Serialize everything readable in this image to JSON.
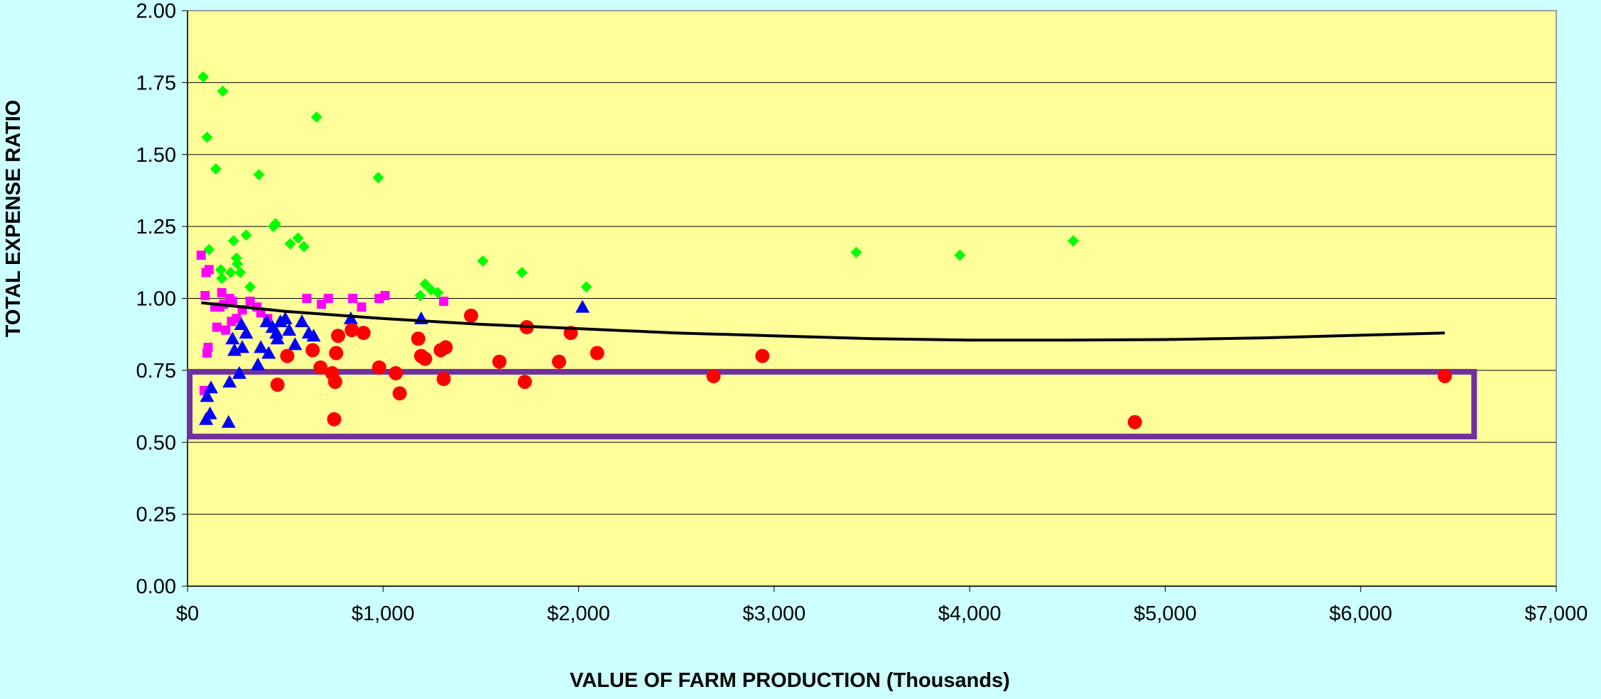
{
  "chart_data": {
    "type": "scatter",
    "title": "",
    "xlabel": "VALUE OF FARM PRODUCTION (Thousands)",
    "ylabel": "TOTAL EXPENSE RATIO",
    "xlim": [
      0,
      7000
    ],
    "ylim": [
      0,
      2
    ],
    "x_ticks": [
      0,
      1000,
      2000,
      3000,
      4000,
      5000,
      6000,
      7000
    ],
    "x_tick_labels": [
      "$0",
      "$1,000",
      "$2,000",
      "$3,000",
      "$4,000",
      "$5,000",
      "$6,000",
      "$7,000"
    ],
    "y_ticks": [
      0,
      0.25,
      0.5,
      0.75,
      1.0,
      1.25,
      1.5,
      1.75,
      2.0
    ],
    "y_tick_labels": [
      "0.00",
      "0.25",
      "0.50",
      "0.75",
      "1.00",
      "1.25",
      "1.50",
      "1.75",
      "2.00"
    ],
    "grid": "horizontal",
    "legend": "none",
    "colors": {
      "page_background": "#ccffff",
      "plot_background": "#ffff99",
      "gridline": "#000000",
      "trend": "#000000",
      "highlight_box": "#7030a0"
    },
    "series": [
      {
        "marker": "diamond",
        "color": "#00ff00",
        "points": [
          [
            80,
            1.77
          ],
          [
            100,
            1.56
          ],
          [
            110,
            1.17
          ],
          [
            145,
            1.45
          ],
          [
            180,
            1.72
          ],
          [
            170,
            1.1
          ],
          [
            175,
            1.07
          ],
          [
            220,
            1.09
          ],
          [
            235,
            1.2
          ],
          [
            250,
            1.14
          ],
          [
            255,
            1.12
          ],
          [
            270,
            1.09
          ],
          [
            300,
            1.22
          ],
          [
            320,
            1.04
          ],
          [
            365,
            1.43
          ],
          [
            440,
            1.25
          ],
          [
            450,
            1.26
          ],
          [
            525,
            1.19
          ],
          [
            565,
            1.21
          ],
          [
            595,
            1.18
          ],
          [
            660,
            1.63
          ],
          [
            975,
            1.42
          ],
          [
            1190,
            1.01
          ],
          [
            1215,
            1.05
          ],
          [
            1245,
            1.03
          ],
          [
            1280,
            1.02
          ],
          [
            1510,
            1.13
          ],
          [
            1710,
            1.09
          ],
          [
            2040,
            1.04
          ],
          [
            3420,
            1.16
          ],
          [
            3950,
            1.15
          ],
          [
            4530,
            1.2
          ]
        ]
      },
      {
        "marker": "square",
        "color": "#ff00ff",
        "points": [
          [
            70,
            1.15
          ],
          [
            85,
            0.68
          ],
          [
            90,
            1.01
          ],
          [
            95,
            1.09
          ],
          [
            100,
            0.81
          ],
          [
            105,
            0.83
          ],
          [
            110,
            1.1
          ],
          [
            140,
            0.97
          ],
          [
            150,
            0.9
          ],
          [
            165,
            0.97
          ],
          [
            175,
            1.02
          ],
          [
            185,
            0.98
          ],
          [
            195,
            0.89
          ],
          [
            215,
            1.0
          ],
          [
            225,
            0.92
          ],
          [
            230,
            0.99
          ],
          [
            250,
            0.93
          ],
          [
            280,
            0.96
          ],
          [
            320,
            0.99
          ],
          [
            355,
            0.97
          ],
          [
            375,
            0.95
          ],
          [
            410,
            0.93
          ],
          [
            610,
            1.0
          ],
          [
            685,
            0.98
          ],
          [
            720,
            1.0
          ],
          [
            845,
            1.0
          ],
          [
            890,
            0.97
          ],
          [
            980,
            1.0
          ],
          [
            1010,
            1.01
          ],
          [
            1310,
            0.99
          ]
        ]
      },
      {
        "marker": "triangle",
        "color": "#0000ff",
        "points": [
          [
            95,
            0.58
          ],
          [
            100,
            0.66
          ],
          [
            115,
            0.6
          ],
          [
            120,
            0.69
          ],
          [
            210,
            0.57
          ],
          [
            215,
            0.71
          ],
          [
            230,
            0.86
          ],
          [
            240,
            0.82
          ],
          [
            265,
            0.74
          ],
          [
            275,
            0.91
          ],
          [
            280,
            0.83
          ],
          [
            300,
            0.88
          ],
          [
            360,
            0.77
          ],
          [
            375,
            0.83
          ],
          [
            405,
            0.92
          ],
          [
            415,
            0.81
          ],
          [
            435,
            0.9
          ],
          [
            455,
            0.88
          ],
          [
            460,
            0.86
          ],
          [
            475,
            0.92
          ],
          [
            500,
            0.93
          ],
          [
            520,
            0.89
          ],
          [
            550,
            0.84
          ],
          [
            585,
            0.92
          ],
          [
            620,
            0.88
          ],
          [
            645,
            0.87
          ],
          [
            835,
            0.93
          ],
          [
            1195,
            0.93
          ],
          [
            2020,
            0.97
          ]
        ]
      },
      {
        "marker": "circle",
        "color": "#ff0000",
        "points": [
          [
            460,
            0.7
          ],
          [
            510,
            0.8
          ],
          [
            640,
            0.82
          ],
          [
            680,
            0.76
          ],
          [
            740,
            0.74
          ],
          [
            755,
            0.71
          ],
          [
            750,
            0.58
          ],
          [
            760,
            0.81
          ],
          [
            770,
            0.87
          ],
          [
            840,
            0.89
          ],
          [
            900,
            0.88
          ],
          [
            980,
            0.76
          ],
          [
            1065,
            0.74
          ],
          [
            1085,
            0.67
          ],
          [
            1180,
            0.86
          ],
          [
            1195,
            0.8
          ],
          [
            1215,
            0.79
          ],
          [
            1295,
            0.82
          ],
          [
            1310,
            0.72
          ],
          [
            1320,
            0.83
          ],
          [
            1450,
            0.94
          ],
          [
            1595,
            0.78
          ],
          [
            1725,
            0.71
          ],
          [
            1735,
            0.9
          ],
          [
            1900,
            0.78
          ],
          [
            1960,
            0.88
          ],
          [
            2095,
            0.81
          ],
          [
            2690,
            0.73
          ],
          [
            2940,
            0.8
          ],
          [
            4845,
            0.57
          ],
          [
            6430,
            0.73
          ]
        ]
      }
    ],
    "trendline": {
      "points": [
        [
          70,
          0.985
        ],
        [
          500,
          0.955
        ],
        [
          1000,
          0.93
        ],
        [
          1500,
          0.91
        ],
        [
          2000,
          0.895
        ],
        [
          2500,
          0.88
        ],
        [
          3000,
          0.87
        ],
        [
          3500,
          0.86
        ],
        [
          4000,
          0.855
        ],
        [
          4500,
          0.855
        ],
        [
          5000,
          0.857
        ],
        [
          5500,
          0.863
        ],
        [
          6000,
          0.872
        ],
        [
          6430,
          0.88
        ]
      ]
    },
    "highlight_box": {
      "x_range": [
        0,
        6580
      ],
      "y_range": [
        0.52,
        0.745
      ]
    }
  }
}
